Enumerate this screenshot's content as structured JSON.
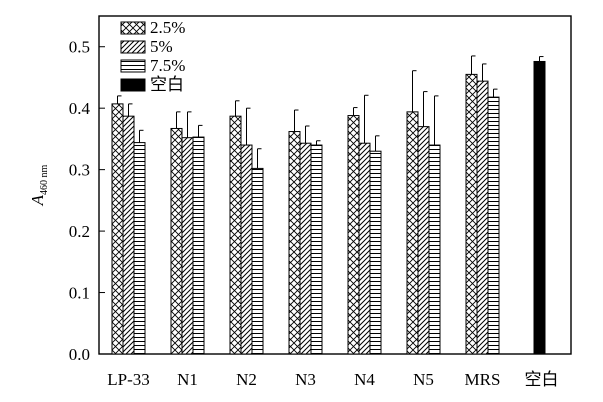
{
  "chart_data": {
    "type": "bar",
    "ylabel": {
      "main": "A",
      "sub": "460 nm"
    },
    "ylim": [
      0,
      0.55
    ],
    "yticks": [
      "0.0",
      "0.1",
      "0.2",
      "0.3",
      "0.4",
      "0.5"
    ],
    "ytick_values": [
      0,
      0.1,
      0.2,
      0.3,
      0.4,
      0.5
    ],
    "categories": [
      "LP-33",
      "N1",
      "N2",
      "N3",
      "N4",
      "N5",
      "MRS",
      "空白"
    ],
    "legend_position": "top-left",
    "series": [
      {
        "name": "2.5%",
        "pattern": "crosshatch",
        "values": [
          0.407,
          0.367,
          0.387,
          0.362,
          0.388,
          0.394,
          0.455,
          null
        ],
        "errors": [
          0.013,
          0.027,
          0.025,
          0.035,
          0.013,
          0.067,
          0.03,
          null
        ]
      },
      {
        "name": "5%",
        "pattern": "diagonal",
        "values": [
          0.387,
          0.352,
          0.34,
          0.343,
          0.343,
          0.37,
          0.444,
          null
        ],
        "errors": [
          0.02,
          0.042,
          0.06,
          0.028,
          0.078,
          0.057,
          0.028,
          null
        ]
      },
      {
        "name": "7.5%",
        "pattern": "horizontal",
        "values": [
          0.344,
          0.353,
          0.302,
          0.34,
          0.33,
          0.34,
          0.418,
          null
        ],
        "errors": [
          0.02,
          0.019,
          0.032,
          0.007,
          0.025,
          0.08,
          0.013,
          null
        ]
      },
      {
        "name": "空白",
        "pattern": "solid",
        "color": "#000000",
        "values": [
          null,
          null,
          null,
          null,
          null,
          null,
          null,
          0.476
        ],
        "errors": [
          null,
          null,
          null,
          null,
          null,
          null,
          null,
          0.008
        ]
      }
    ]
  }
}
